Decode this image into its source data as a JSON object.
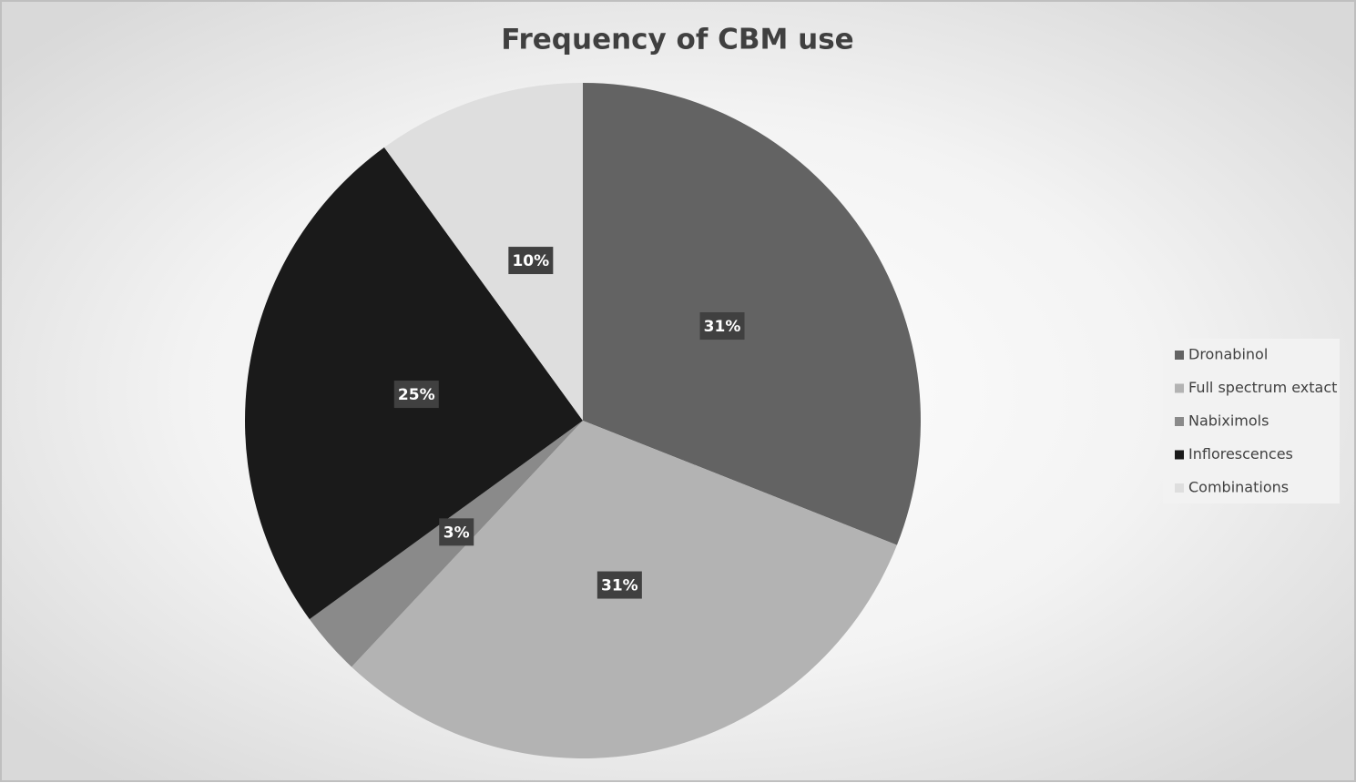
{
  "chart_data": {
    "type": "pie",
    "title": "Frequency of CBM use",
    "categories": [
      "Dronabinol",
      "Full spectrum extact",
      "Nabiximols",
      "Inflorescences",
      "Combinations"
    ],
    "values": [
      31,
      31,
      3,
      25,
      10
    ],
    "value_labels": [
      "31%",
      "31%",
      "3%",
      "25%",
      "10%"
    ],
    "colors": [
      "#636363",
      "#b3b3b3",
      "#8a8a8a",
      "#1a1a1a",
      "#dedede"
    ],
    "legend": "right"
  }
}
